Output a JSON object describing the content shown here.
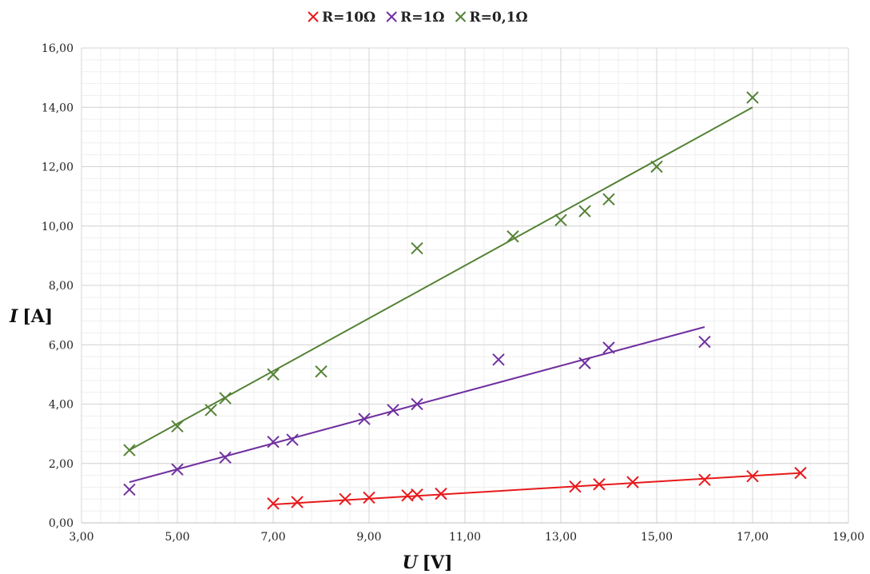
{
  "chart_data": {
    "type": "scatter",
    "title": "",
    "xlabel_var": "U",
    "xlabel_unit": "[V]",
    "ylabel_var": "I",
    "ylabel_unit": "[A]",
    "xlim": [
      3,
      19
    ],
    "ylim": [
      0,
      16
    ],
    "x_major_step": 2,
    "y_major_step": 2,
    "x_minor_step": 0.4,
    "y_minor_step": 0.4,
    "x_tick_labels": [
      "3,00",
      "5,00",
      "7,00",
      "9,00",
      "11,00",
      "13,00",
      "15,00",
      "17,00",
      "19,00"
    ],
    "y_tick_labels": [
      "0,00",
      "2,00",
      "4,00",
      "6,00",
      "8,00",
      "10,00",
      "12,00",
      "14,00",
      "16,00"
    ],
    "grid": true,
    "legend_position": "top-center",
    "series": [
      {
        "name": "R=10Ω",
        "color": "#e8191b",
        "marker": "x",
        "points": [
          [
            7.0,
            0.65
          ],
          [
            7.5,
            0.7
          ],
          [
            8.5,
            0.8
          ],
          [
            9.0,
            0.85
          ],
          [
            9.8,
            0.92
          ],
          [
            10.0,
            0.95
          ],
          [
            10.5,
            0.98
          ],
          [
            13.3,
            1.22
          ],
          [
            13.8,
            1.3
          ],
          [
            14.5,
            1.37
          ],
          [
            16.0,
            1.45
          ],
          [
            17.0,
            1.57
          ],
          [
            18.0,
            1.68
          ]
        ],
        "trendline": [
          [
            7.0,
            0.62
          ],
          [
            18.0,
            1.68
          ]
        ]
      },
      {
        "name": "R=1Ω",
        "color": "#7030a0",
        "marker": "x",
        "points": [
          [
            4.0,
            1.12
          ],
          [
            5.0,
            1.8
          ],
          [
            6.0,
            2.2
          ],
          [
            7.0,
            2.73
          ],
          [
            7.4,
            2.8
          ],
          [
            8.9,
            3.5
          ],
          [
            9.5,
            3.8
          ],
          [
            10.0,
            4.0
          ],
          [
            11.7,
            5.5
          ],
          [
            13.5,
            5.38
          ],
          [
            14.0,
            5.9
          ],
          [
            16.0,
            6.1
          ]
        ],
        "trendline": [
          [
            4.0,
            1.37
          ],
          [
            16.0,
            6.6
          ]
        ]
      },
      {
        "name": "R=0,1Ω",
        "color": "#548235",
        "marker": "x",
        "points": [
          [
            4.0,
            2.45
          ],
          [
            5.0,
            3.25
          ],
          [
            5.7,
            3.8
          ],
          [
            6.0,
            4.2
          ],
          [
            7.0,
            5.0
          ],
          [
            8.0,
            5.1
          ],
          [
            10.0,
            9.25
          ],
          [
            12.0,
            9.65
          ],
          [
            13.0,
            10.2
          ],
          [
            13.5,
            10.5
          ],
          [
            14.0,
            10.9
          ],
          [
            15.0,
            12.0
          ],
          [
            17.0,
            14.33
          ]
        ],
        "trendline": [
          [
            4.0,
            2.45
          ],
          [
            17.0,
            14.0
          ]
        ]
      }
    ]
  }
}
